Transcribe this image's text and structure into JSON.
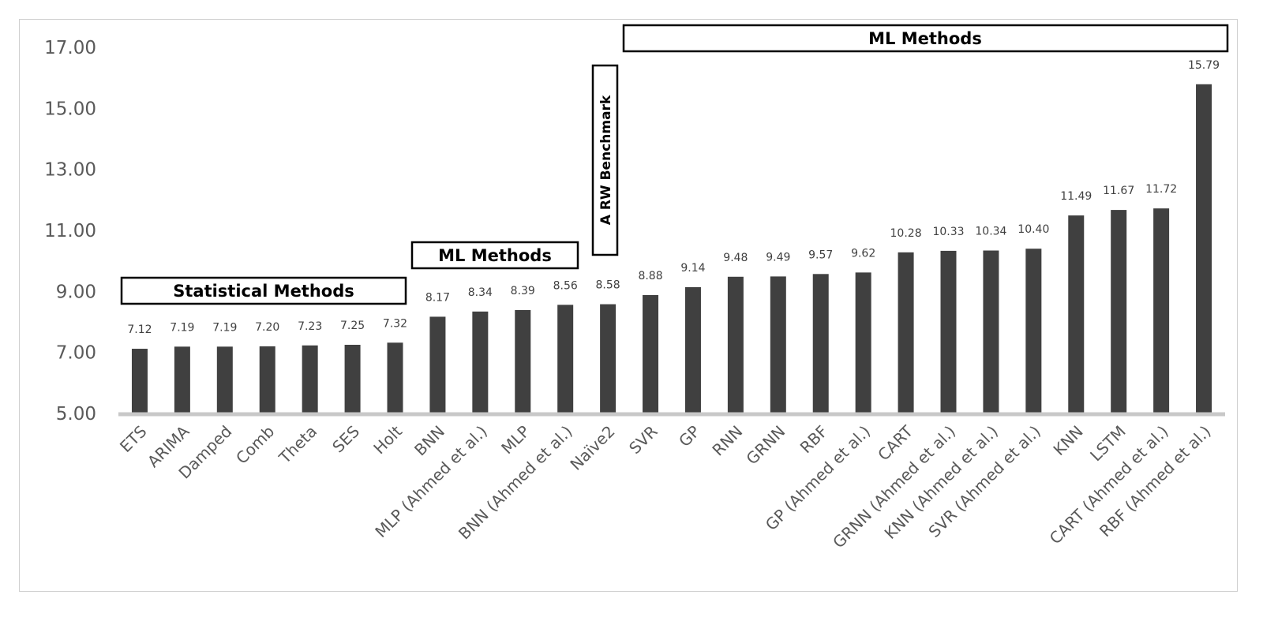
{
  "chart_data": {
    "type": "bar",
    "title": "",
    "xlabel": "",
    "ylabel": "",
    "ylim": [
      5,
      17
    ],
    "y_ticks": [
      "5.00",
      "7.00",
      "9.00",
      "11.00",
      "13.00",
      "15.00",
      "17.00"
    ],
    "grid": false,
    "legend": "none",
    "bar_color": "#404040",
    "axis_color": "#c8c8c8",
    "categories": [
      "ETS",
      "ARIMA",
      "Damped",
      "Comb",
      "Theta",
      "SES",
      "Holt",
      "BNN",
      "MLP (Ahmed et al.)",
      "MLP",
      "BNN  (Ahmed et al.)",
      "Naïve2",
      "SVR",
      "GP",
      "RNN",
      "GRNN",
      "RBF",
      "GP  (Ahmed et al.)",
      "CART",
      "GRNN  (Ahmed et al.)",
      "KNN  (Ahmed et al.)",
      "SVR  (Ahmed et al.)",
      "KNN",
      "LSTM",
      "CART  (Ahmed et al.)",
      "RBF  (Ahmed et al.)"
    ],
    "values": [
      7.12,
      7.19,
      7.19,
      7.2,
      7.23,
      7.25,
      7.32,
      8.17,
      8.34,
      8.39,
      8.56,
      8.58,
      8.88,
      9.14,
      9.48,
      9.49,
      9.57,
      9.62,
      10.28,
      10.33,
      10.34,
      10.4,
      11.49,
      11.67,
      11.72,
      15.79
    ],
    "data_labels": [
      "7.12",
      "7.19",
      "7.19",
      "7.20",
      "7.23",
      "7.25",
      "7.32",
      "8.17",
      "8.34",
      "8.39",
      "8.56",
      "8.58",
      "8.88",
      "9.14",
      "9.48",
      "9.49",
      "9.57",
      "9.62",
      "10.28",
      "10.33",
      "10.34",
      "10.40",
      "11.49",
      "11.67",
      "11.72",
      "15.79"
    ],
    "annotations": [
      {
        "id": "stat",
        "text": "Statistical Methods",
        "from_index": 0,
        "to_index": 6
      },
      {
        "id": "ml1",
        "text": "ML Methods",
        "from_index": 7,
        "to_index": 10
      },
      {
        "id": "rw",
        "text": "A RW Benchmark",
        "from_index": 11,
        "to_index": 11,
        "orientation": "vertical"
      },
      {
        "id": "ml2",
        "text": "ML Methods",
        "from_index": 12,
        "to_index": 25
      }
    ]
  }
}
